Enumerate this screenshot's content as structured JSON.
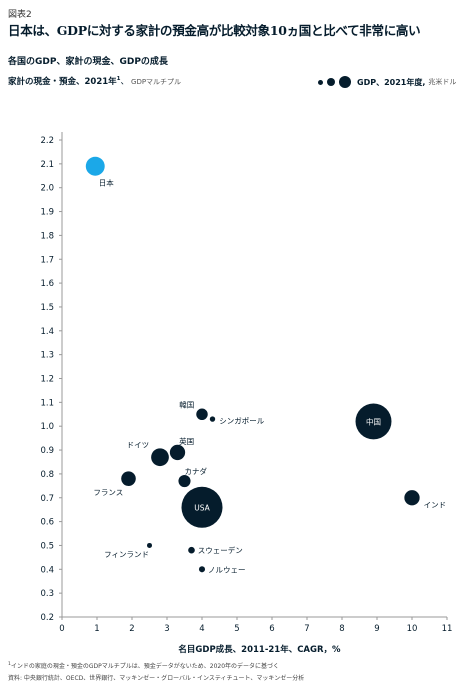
{
  "exhibit_label": "図表2",
  "headline": "日本は、GDPに対する家計の預金高が比較対象10ヵ国と比べて非常に高い",
  "subtitle": "各国のGDP、家計の現金、GDPの成長",
  "y_axis_title": {
    "main": "家計の現金・預金、2021年",
    "sup": "1",
    "unit": "GDPマルチプル"
  },
  "legend": {
    "label": "GDP、2021年度,",
    "unit": "兆米ドル"
  },
  "footnote": {
    "sup": "1",
    "text": "インドの家庭の現金・預金のGDPマルチプルは、預金データがないため、2020年のデータに基づく"
  },
  "source": "資料: 中央銀行統計、OECD、世界銀行、マッキンゼー・グローバル・インスティチュート、マッキンゼー分析",
  "colors": {
    "navy": "#051c2c",
    "highlight": "#1ba8e8",
    "axis": "#999999"
  },
  "chart_data": {
    "type": "scatter",
    "xlabel": "名目GDP成長、2011-21年、CAGR，%",
    "ylabel": "家計の現金・預金、2021年 GDPマルチプル",
    "xlim": [
      0,
      11
    ],
    "ylim": [
      0.2,
      2.2
    ],
    "x_ticks": [
      0,
      1,
      2,
      3,
      4,
      5,
      6,
      7,
      8,
      9,
      10,
      11
    ],
    "y_ticks": [
      "0.2",
      "0.3",
      "0.4",
      "0.5",
      "0.6",
      "0.7",
      "0.8",
      "0.9",
      "1.0",
      "1.1",
      "1.2",
      "1.3",
      "1.4",
      "1.5",
      "1.6",
      "1.7",
      "1.8",
      "1.9",
      "2.0",
      "2.1",
      "2.2"
    ],
    "grid": false,
    "legend_position": "top-right",
    "points": [
      {
        "label": "日本",
        "x": 0.95,
        "y": 2.09,
        "gdp": 4.9,
        "highlight": true,
        "label_pos": "below-right"
      },
      {
        "label": "USA",
        "x": 4.0,
        "y": 0.66,
        "gdp": 23.0,
        "highlight": false,
        "label_pos": "center"
      },
      {
        "label": "中国",
        "x": 8.9,
        "y": 1.02,
        "gdp": 17.7,
        "highlight": false,
        "label_pos": "center"
      },
      {
        "label": "インド",
        "x": 10.0,
        "y": 0.7,
        "gdp": 3.2,
        "highlight": false,
        "label_pos": "right-below"
      },
      {
        "label": "韓国",
        "x": 4.0,
        "y": 1.05,
        "gdp": 1.8,
        "highlight": false,
        "label_pos": "left-above"
      },
      {
        "label": "シンガポール",
        "x": 4.3,
        "y": 1.03,
        "gdp": 0.4,
        "highlight": false,
        "label_pos": "right-below"
      },
      {
        "label": "ドイツ",
        "x": 2.8,
        "y": 0.87,
        "gdp": 4.3,
        "highlight": false,
        "label_pos": "left-above"
      },
      {
        "label": "英国",
        "x": 3.3,
        "y": 0.89,
        "gdp": 3.2,
        "highlight": false,
        "label_pos": "right-above"
      },
      {
        "label": "フランス",
        "x": 1.9,
        "y": 0.78,
        "gdp": 2.9,
        "highlight": false,
        "label_pos": "left-below"
      },
      {
        "label": "カナダ",
        "x": 3.5,
        "y": 0.77,
        "gdp": 2.0,
        "highlight": false,
        "label_pos": "right-above"
      },
      {
        "label": "フィンランド",
        "x": 2.5,
        "y": 0.5,
        "gdp": 0.3,
        "highlight": false,
        "label_pos": "left-below"
      },
      {
        "label": "スウェーデン",
        "x": 3.7,
        "y": 0.48,
        "gdp": 0.6,
        "highlight": false,
        "label_pos": "right"
      },
      {
        "label": "ノルウェー",
        "x": 4.0,
        "y": 0.4,
        "gdp": 0.5,
        "highlight": false,
        "label_pos": "right"
      }
    ]
  }
}
